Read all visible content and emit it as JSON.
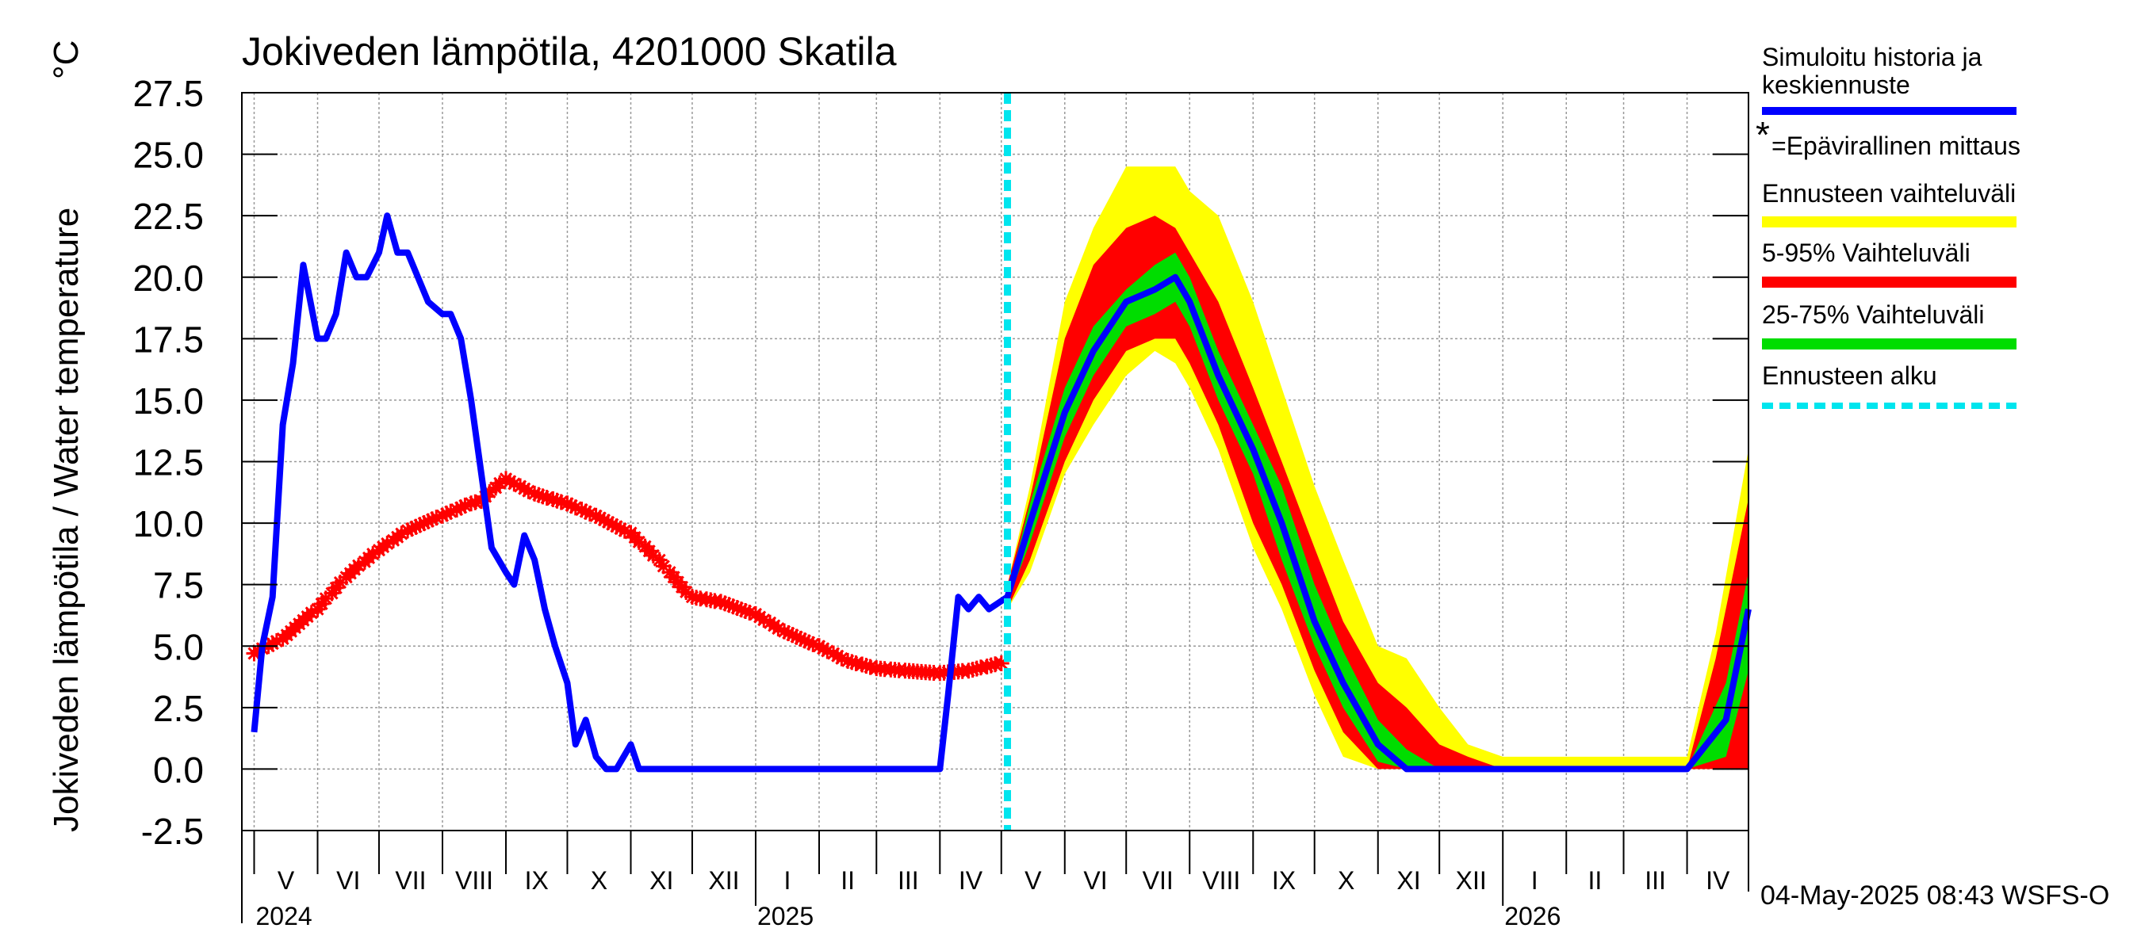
{
  "chart_data": {
    "type": "line",
    "title": "Jokiveden lämpötila, 4201000 Skatila",
    "ylabel": "Jokiveden lämpötila / Water temperature",
    "yunit": "°C",
    "ylim": [
      -2.5,
      27.5
    ],
    "yticks": [
      "27.5",
      "25.0",
      "22.5",
      "20.0",
      "17.5",
      "15.0",
      "12.5",
      "10.0",
      "7.5",
      "5.0",
      "2.5",
      "0.0",
      "-2.5"
    ],
    "grid": true,
    "legend_position": "right",
    "months": [
      "V",
      "VI",
      "VII",
      "VIII",
      "IX",
      "X",
      "XI",
      "XII",
      "I",
      "II",
      "III",
      "IV",
      "V",
      "VI",
      "VII",
      "VIII",
      "IX",
      "X",
      "XI",
      "XII",
      "I",
      "II",
      "III",
      "IV"
    ],
    "years": [
      "2024",
      "2025",
      "2026"
    ],
    "forecast_start": "2025-05-04",
    "footer": "04-May-2025 08:43 WSFS-O",
    "legend": [
      {
        "label": "Simuloitu historia ja",
        "label2": "keskiennuste",
        "color": "#0000ff",
        "style": "line"
      },
      {
        "label": "=Epävirallinen mittaus",
        "color": "#ff0000",
        "style": "star",
        "marker": "*"
      },
      {
        "label": "Ennusteen vaihteluväli",
        "color": "#ffff00",
        "style": "line"
      },
      {
        "label": "5-95% Vaihteluväli",
        "color": "#ff0000",
        "style": "line"
      },
      {
        "label": "25-75% Vaihteluväli",
        "color": "#00dd00",
        "style": "line"
      },
      {
        "label": "Ennusteen alku",
        "color": "#00e5ee",
        "style": "dashed"
      }
    ],
    "series": [
      {
        "name": "Simuloitu historia ja keskiennuste",
        "color": "#0000ff",
        "x": [
          "2024-05-01",
          "2024-05-05",
          "2024-05-10",
          "2024-05-15",
          "2024-05-20",
          "2024-05-25",
          "2024-06-01",
          "2024-06-05",
          "2024-06-10",
          "2024-06-15",
          "2024-06-20",
          "2024-06-25",
          "2024-07-01",
          "2024-07-05",
          "2024-07-10",
          "2024-07-15",
          "2024-07-20",
          "2024-07-25",
          "2024-08-01",
          "2024-08-05",
          "2024-08-10",
          "2024-08-15",
          "2024-08-20",
          "2024-08-25",
          "2024-09-01",
          "2024-09-05",
          "2024-09-10",
          "2024-09-15",
          "2024-09-20",
          "2024-09-25",
          "2024-10-01",
          "2024-10-05",
          "2024-10-10",
          "2024-10-15",
          "2024-10-20",
          "2024-10-25",
          "2024-11-01",
          "2024-11-05",
          "2024-11-10",
          "2024-11-15",
          "2024-11-20",
          "2024-11-25",
          "2024-12-01",
          "2024-12-05",
          "2024-12-10",
          "2024-12-15",
          "2024-12-20",
          "2025-01-01",
          "2025-02-01",
          "2025-03-01",
          "2025-04-01",
          "2025-04-05",
          "2025-04-10",
          "2025-04-15",
          "2025-04-20",
          "2025-04-25",
          "2025-05-04",
          "2025-05-15",
          "2025-06-01",
          "2025-06-15",
          "2025-07-01",
          "2025-07-15",
          "2025-07-25",
          "2025-08-01",
          "2025-08-15",
          "2025-09-01",
          "2025-09-15",
          "2025-10-01",
          "2025-10-15",
          "2025-11-01",
          "2025-11-15",
          "2025-12-01",
          "2025-12-15",
          "2026-01-01",
          "2026-02-01",
          "2026-03-01",
          "2026-04-01",
          "2026-04-20",
          "2026-05-01"
        ],
        "y": [
          1.5,
          5.0,
          7.0,
          14.0,
          16.5,
          20.5,
          17.5,
          17.5,
          18.5,
          21.0,
          20.0,
          20.0,
          21.0,
          22.5,
          21.0,
          21.0,
          20.0,
          19.0,
          18.5,
          18.5,
          17.5,
          15.0,
          12.0,
          9.0,
          8.0,
          7.5,
          9.5,
          8.5,
          6.5,
          5.0,
          3.5,
          1.0,
          2.0,
          0.5,
          0.0,
          0.0,
          1.0,
          0.0,
          0.0,
          0.0,
          0.0,
          0.0,
          0.0,
          0.0,
          0.0,
          0.0,
          0.0,
          0.0,
          0.0,
          0.0,
          0.0,
          3.0,
          7.0,
          6.5,
          7.0,
          6.5,
          7.0,
          10.0,
          14.5,
          17.0,
          19.0,
          19.5,
          20.0,
          19.0,
          16.0,
          13.0,
          10.0,
          6.0,
          3.5,
          1.0,
          0.0,
          0.0,
          0.0,
          0.0,
          0.0,
          0.0,
          0.0,
          2.0,
          6.5
        ]
      },
      {
        "name": "Epävirallinen mittaus",
        "color": "#ff0000",
        "x": [
          "2024-05-01",
          "2024-05-15",
          "2024-06-01",
          "2024-06-15",
          "2024-07-01",
          "2024-07-15",
          "2024-08-01",
          "2024-08-15",
          "2024-08-20",
          "2024-09-01",
          "2024-09-15",
          "2024-10-01",
          "2024-10-15",
          "2024-11-01",
          "2024-11-15",
          "2024-11-20",
          "2024-12-01",
          "2024-12-15",
          "2025-01-01",
          "2025-01-15",
          "2025-02-01",
          "2025-02-15",
          "2025-03-01",
          "2025-03-15",
          "2025-04-01",
          "2025-04-15",
          "2025-05-01"
        ],
        "y": [
          4.7,
          5.3,
          6.5,
          7.8,
          8.9,
          9.7,
          10.3,
          10.8,
          10.9,
          11.8,
          11.2,
          10.8,
          10.3,
          9.6,
          8.5,
          8.0,
          7.0,
          6.8,
          6.3,
          5.6,
          5.0,
          4.4,
          4.1,
          4.0,
          3.9,
          4.0,
          4.3
        ]
      }
    ],
    "bands": [
      {
        "name": "Ennusteen vaihteluväli",
        "color": "#ffff00",
        "x": [
          "2025-05-04",
          "2025-05-15",
          "2025-06-01",
          "2025-06-15",
          "2025-07-01",
          "2025-07-15",
          "2025-07-25",
          "2025-08-01",
          "2025-08-15",
          "2025-09-01",
          "2025-09-15",
          "2025-10-01",
          "2025-10-15",
          "2025-11-01",
          "2025-11-15",
          "2025-12-01",
          "2025-12-15",
          "2026-01-01",
          "2026-04-01",
          "2026-04-15",
          "2026-05-01"
        ],
        "low": [
          6.5,
          8.0,
          12.0,
          14.0,
          16.0,
          17.0,
          16.5,
          15.5,
          13.0,
          9.0,
          6.5,
          3.0,
          0.5,
          0.0,
          0.0,
          0.0,
          0.0,
          0.0,
          0.0,
          0.0,
          0.0
        ],
        "high": [
          7.5,
          11.5,
          19.0,
          22.0,
          24.5,
          24.5,
          24.5,
          23.5,
          22.5,
          19.0,
          15.5,
          11.5,
          8.5,
          5.0,
          4.5,
          2.5,
          1.0,
          0.5,
          0.5,
          5.5,
          13.0
        ]
      },
      {
        "name": "5-95% Vaihteluväli",
        "color": "#ff0000",
        "x": [
          "2025-05-04",
          "2025-05-15",
          "2025-06-01",
          "2025-06-15",
          "2025-07-01",
          "2025-07-15",
          "2025-07-25",
          "2025-08-01",
          "2025-08-15",
          "2025-09-01",
          "2025-09-15",
          "2025-10-01",
          "2025-10-15",
          "2025-11-01",
          "2025-11-15",
          "2025-12-01",
          "2025-12-15",
          "2026-01-01",
          "2026-04-01",
          "2026-04-15",
          "2026-05-01"
        ],
        "low": [
          6.5,
          8.5,
          12.5,
          15.0,
          17.0,
          17.5,
          17.5,
          16.5,
          14.0,
          10.0,
          7.5,
          4.0,
          1.5,
          0.0,
          0.0,
          0.0,
          0.0,
          0.0,
          0.0,
          0.0,
          0.0
        ],
        "high": [
          7.5,
          11.0,
          17.5,
          20.5,
          22.0,
          22.5,
          22.0,
          21.0,
          19.0,
          15.5,
          12.5,
          9.0,
          6.0,
          3.5,
          2.5,
          1.0,
          0.5,
          0.0,
          0.0,
          4.5,
          11.0
        ]
      },
      {
        "name": "25-75% Vaihteluväli",
        "color": "#00dd00",
        "x": [
          "2025-05-04",
          "2025-05-15",
          "2025-06-01",
          "2025-06-15",
          "2025-07-01",
          "2025-07-15",
          "2025-07-25",
          "2025-08-01",
          "2025-08-15",
          "2025-09-01",
          "2025-09-15",
          "2025-10-01",
          "2025-10-15",
          "2025-11-01",
          "2025-11-15",
          "2025-12-01",
          "2025-12-15",
          "2026-01-01",
          "2026-04-01",
          "2026-04-20",
          "2026-05-01"
        ],
        "low": [
          6.8,
          9.2,
          13.5,
          16.0,
          18.0,
          18.5,
          19.0,
          18.0,
          15.0,
          12.0,
          8.5,
          5.0,
          2.5,
          0.3,
          0.0,
          0.0,
          0.0,
          0.0,
          0.0,
          0.5,
          4.0
        ],
        "high": [
          7.2,
          10.8,
          15.5,
          18.0,
          19.5,
          20.5,
          21.0,
          20.0,
          17.0,
          14.0,
          11.5,
          7.5,
          4.8,
          2.0,
          0.8,
          0.0,
          0.0,
          0.0,
          0.0,
          3.5,
          8.0
        ]
      }
    ]
  }
}
